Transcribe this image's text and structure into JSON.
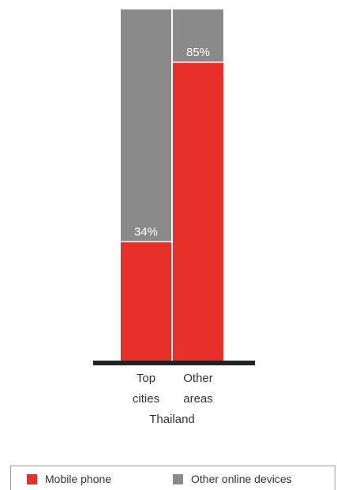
{
  "chart_data": {
    "type": "bar",
    "stacked": true,
    "categories": [
      {
        "line1": "Top",
        "line2": "cities"
      },
      {
        "line1": "Other",
        "line2": "areas"
      }
    ],
    "group_label": "Thailand",
    "series": [
      {
        "name": "Mobile phone",
        "color": "#e8302a",
        "values": [
          34,
          85
        ],
        "value_labels": [
          "34%",
          "85%"
        ]
      },
      {
        "name": "Other online devices",
        "color": "#8a8a8a",
        "values": [
          66,
          15
        ]
      }
    ],
    "ylim": [
      0,
      100
    ],
    "grid": false,
    "legend_position": "bottom"
  }
}
